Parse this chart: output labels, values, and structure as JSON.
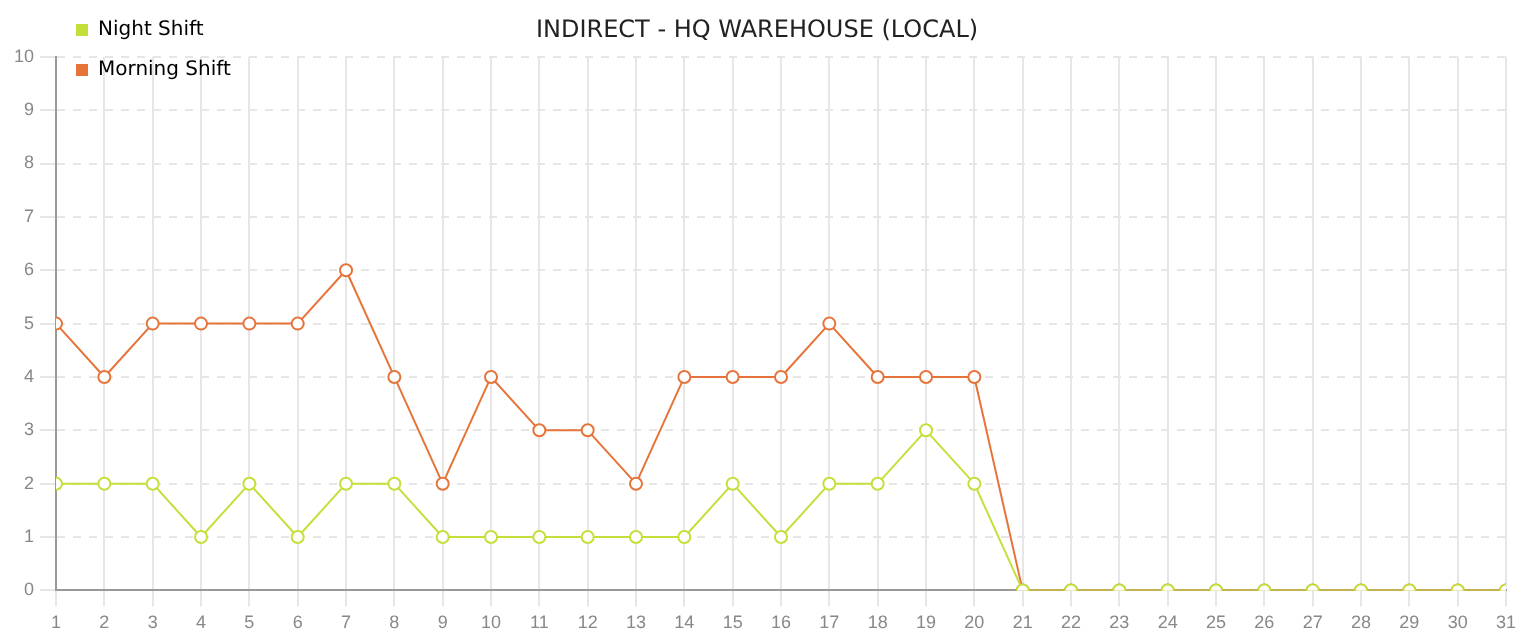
{
  "chart_data": {
    "type": "line",
    "title": "INDIRECT - HQ WAREHOUSE (LOCAL)",
    "x": [
      1,
      2,
      3,
      4,
      5,
      6,
      7,
      8,
      9,
      10,
      11,
      12,
      13,
      14,
      15,
      16,
      17,
      18,
      19,
      20,
      21,
      22,
      23,
      24,
      25,
      26,
      27,
      28,
      29,
      30,
      31
    ],
    "series": [
      {
        "name": "Night Shift",
        "color": "#c5df3a",
        "values": [
          2,
          2,
          2,
          1,
          2,
          1,
          2,
          2,
          1,
          1,
          1,
          1,
          1,
          1,
          2,
          1,
          2,
          2,
          3,
          2,
          0,
          0,
          0,
          0,
          0,
          0,
          0,
          0,
          0,
          0,
          0
        ]
      },
      {
        "name": "Morning Shift",
        "color": "#e6733a",
        "values": [
          5,
          4,
          5,
          5,
          5,
          5,
          6,
          4,
          2,
          4,
          3,
          3,
          2,
          4,
          4,
          4,
          5,
          4,
          4,
          4,
          0,
          0,
          0,
          0,
          0,
          0,
          0,
          0,
          0,
          0,
          0
        ]
      }
    ],
    "xlim": [
      1,
      31
    ],
    "xticks": [
      1,
      2,
      3,
      4,
      5,
      6,
      7,
      8,
      9,
      10,
      11,
      12,
      13,
      14,
      15,
      16,
      17,
      18,
      19,
      20,
      21,
      22,
      23,
      24,
      25,
      26,
      27,
      28,
      29,
      30,
      31
    ],
    "ylim": [
      0,
      10
    ],
    "yticks": [
      0,
      1,
      2,
      3,
      4,
      5,
      6,
      7,
      8,
      9,
      10
    ],
    "grid": true,
    "legend": "top left",
    "marker": "circle",
    "line_style": "solid"
  }
}
